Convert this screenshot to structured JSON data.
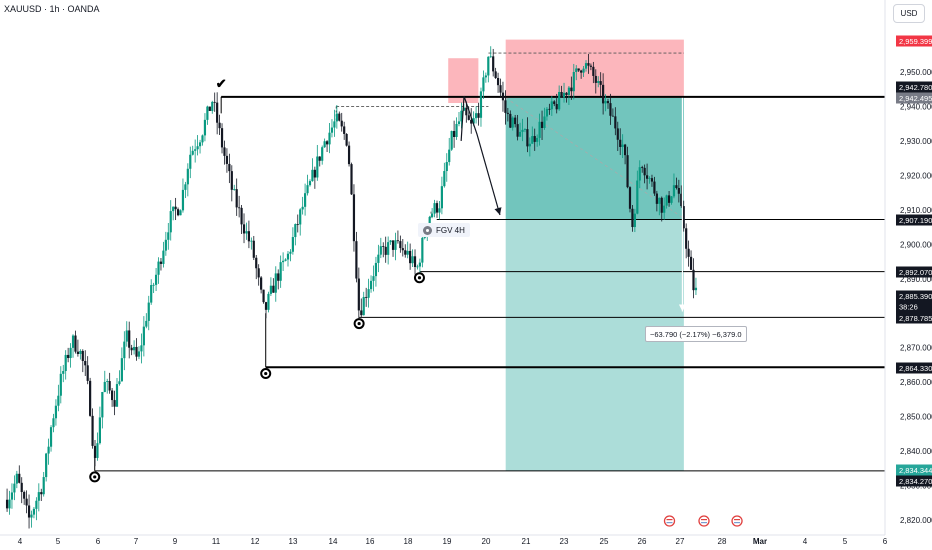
{
  "header": {
    "symbol_title": "XAUUSD · 1h · OANDA",
    "currency_button": "USD"
  },
  "annotations": {
    "fvg_label": "FGV 4H",
    "measure_label": "−63.790 (−2.17%) −6,379.0",
    "checkmark": "✔"
  },
  "colors": {
    "background": "#ffffff",
    "candle_up": "#089981",
    "candle_down": "#131722",
    "long_zone": "#26a69a",
    "stop_zone": "#f7525f",
    "level_line": "#000000"
  },
  "chart_data": {
    "type": "candlestick",
    "symbol": "XAUUSD",
    "timeframe": "1h",
    "source": "OANDA",
    "ylim": [
      2815,
      2965
    ],
    "y_ticks": [
      2820,
      2830,
      2840,
      2850,
      2860,
      2870,
      2880,
      2890,
      2900,
      2910,
      2920,
      2930,
      2940,
      2950
    ],
    "x_ticks": [
      "4",
      "5",
      "6",
      "7",
      "9",
      "11",
      "12",
      "13",
      "14",
      "16",
      "18",
      "19",
      "20",
      "21",
      "23",
      "25",
      "26",
      "27",
      "28",
      "Mar",
      "4",
      "5",
      "6"
    ],
    "price_labels": [
      {
        "value": 2959.399,
        "text": "2,959.399",
        "style": "red"
      },
      {
        "value": 2942.78,
        "text": "2,942.780",
        "style": "dark"
      },
      {
        "value": 2942.495,
        "text": "2,942.495",
        "style": "gray"
      },
      {
        "value": 2907.19,
        "text": "2,907.190",
        "style": "dark"
      },
      {
        "value": 2892.07,
        "text": "2,892.070",
        "style": "dark"
      },
      {
        "value": 2885.39,
        "text": "2,885.390",
        "style": "dark",
        "sub": "38:26"
      },
      {
        "value": 2878.785,
        "text": "2,878.785",
        "style": "dark"
      },
      {
        "value": 2864.33,
        "text": "2,864.330",
        "style": "dark"
      },
      {
        "value": 2834.344,
        "text": "2,834.344",
        "style": "teal"
      },
      {
        "value": 2834.27,
        "text": "2,834.270",
        "style": "dark"
      }
    ],
    "horizontal_levels": [
      {
        "value": 2942.78,
        "from": 11,
        "weight": 2
      },
      {
        "value": 2907.19,
        "from": 18.5,
        "weight": 1
      },
      {
        "value": 2892.07,
        "from": 17.9,
        "weight": 1
      },
      {
        "value": 2878.785,
        "from": 15.8,
        "weight": 1
      },
      {
        "value": 2864.33,
        "from": 12.55,
        "weight": 2
      },
      {
        "value": 2834.27,
        "from": 6.6,
        "weight": 1
      }
    ],
    "position": {
      "type": "long",
      "start": 20.9,
      "end": 27.1,
      "entry": 2942.495,
      "stop": 2959.399,
      "target": 2834.344,
      "current": 2907.19
    },
    "supply_zone": {
      "start": 18.9,
      "end": 19.95,
      "top": 2954,
      "bottom": 2941
    },
    "swing_price": [
      [
        3.5,
        2825
      ],
      [
        3.9,
        2832
      ],
      [
        4.3,
        2820
      ],
      [
        4.8,
        2831
      ],
      [
        5.1,
        2848
      ],
      [
        5.4,
        2860
      ],
      [
        5.8,
        2872
      ],
      [
        6.05,
        2870
      ],
      [
        6.3,
        2862
      ],
      [
        6.45,
        2852
      ],
      [
        6.6,
        2836
      ],
      [
        6.9,
        2860
      ],
      [
        7.3,
        2855
      ],
      [
        7.7,
        2873
      ],
      [
        8.1,
        2866
      ],
      [
        8.5,
        2884
      ],
      [
        8.8,
        2893
      ],
      [
        9.2,
        2907
      ],
      [
        9.6,
        2912
      ],
      [
        9.9,
        2926
      ],
      [
        10.3,
        2932
      ],
      [
        10.7,
        2942
      ],
      [
        11.0,
        2930
      ],
      [
        11.4,
        2915
      ],
      [
        11.8,
        2905
      ],
      [
        12.1,
        2898
      ],
      [
        12.5,
        2880
      ],
      [
        12.9,
        2890
      ],
      [
        13.3,
        2896
      ],
      [
        13.8,
        2910
      ],
      [
        14.2,
        2920
      ],
      [
        14.6,
        2930
      ],
      [
        15.0,
        2936
      ],
      [
        15.4,
        2930
      ],
      [
        15.6,
        2906
      ],
      [
        15.8,
        2880
      ],
      [
        16.2,
        2890
      ],
      [
        16.6,
        2898
      ],
      [
        17.0,
        2900
      ],
      [
        17.5,
        2897
      ],
      [
        17.8,
        2892
      ],
      [
        18.2,
        2908
      ],
      [
        18.6,
        2912
      ],
      [
        19.0,
        2930
      ],
      [
        19.4,
        2938
      ],
      [
        19.7,
        2934
      ],
      [
        20.0,
        2940
      ],
      [
        20.3,
        2955
      ],
      [
        20.6,
        2948
      ],
      [
        20.9,
        2938
      ],
      [
        21.4,
        2932
      ],
      [
        21.8,
        2930
      ],
      [
        22.2,
        2936
      ],
      [
        22.7,
        2941
      ],
      [
        23.2,
        2947
      ],
      [
        23.6,
        2953
      ],
      [
        24.0,
        2948
      ],
      [
        24.4,
        2940
      ],
      [
        24.7,
        2935
      ],
      [
        25.0,
        2928
      ],
      [
        25.3,
        2905
      ],
      [
        25.6,
        2925
      ],
      [
        26.0,
        2917
      ],
      [
        26.4,
        2910
      ],
      [
        26.8,
        2918
      ],
      [
        27.1,
        2905
      ],
      [
        27.4,
        2888
      ],
      [
        27.6,
        2885
      ]
    ]
  }
}
